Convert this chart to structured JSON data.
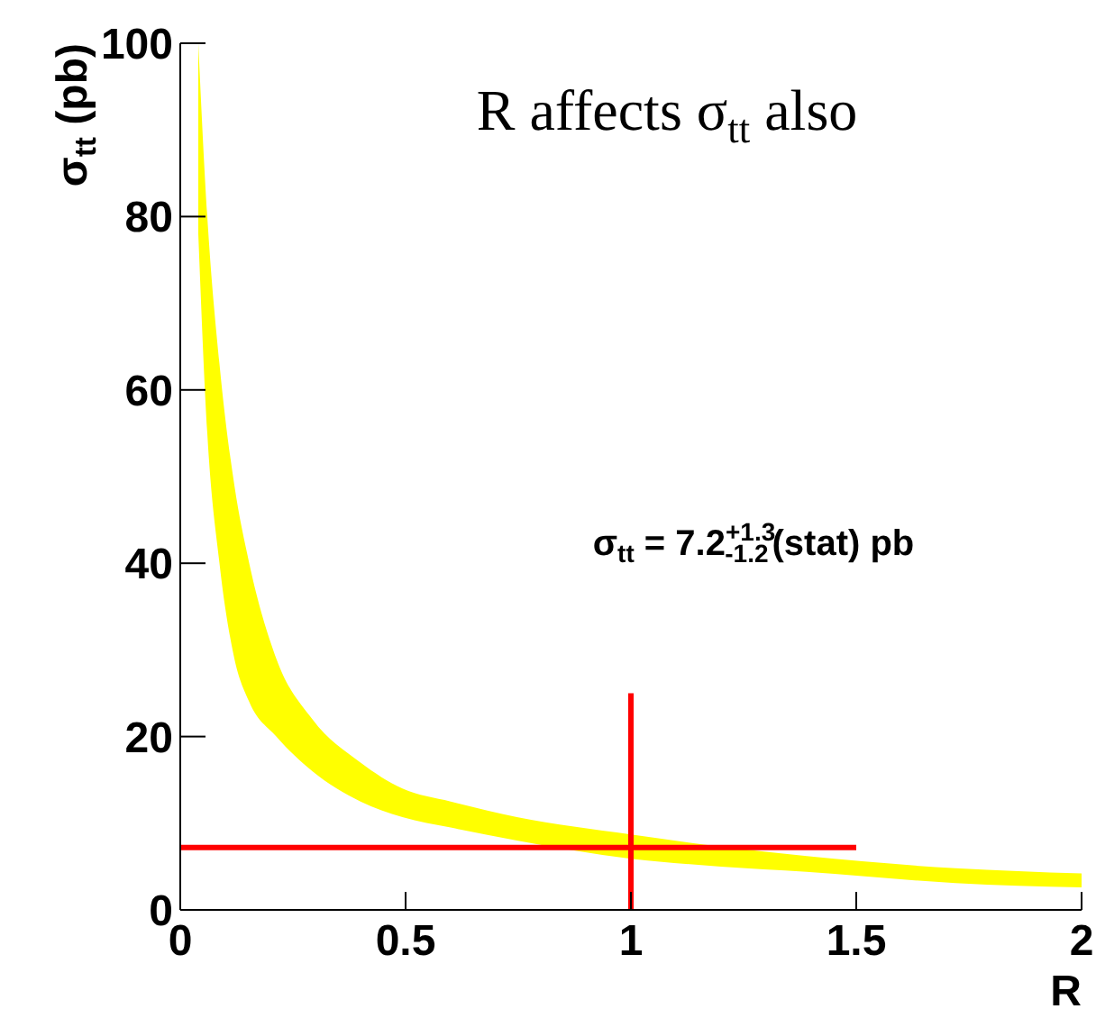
{
  "chart_data": {
    "type": "line",
    "title": "R affects σ$_{tt}$ also",
    "xlabel": "R",
    "ylabel": "σ$_{tt}$ (pb)",
    "annotations": [
      "σ$_{tt}$ = 7.2$^{+1.3}$$_{-1.2}$(stat) pb"
    ],
    "xlim": [
      0,
      2
    ],
    "xticks": [
      0,
      0.5,
      1,
      1.5,
      2
    ],
    "ylim": [
      0,
      100
    ],
    "yticks": [
      0,
      20,
      40,
      60,
      80,
      100
    ],
    "grid": false,
    "marker": "none",
    "line_style": "solid",
    "series": [
      {
        "type": "line",
        "color": "#ffff00",
        "x": [
          0.04,
          0.06,
          0.087,
          0.12,
          0.153,
          0.213,
          0.293,
          0.4,
          0.493,
          0.6,
          0.747,
          1,
          1.2,
          1.39,
          1.72,
          2
        ],
        "values": [
          null,
          null,
          null,
          null,
          null,
          null,
          null,
          null,
          null,
          null,
          null,
          null,
          null,
          null,
          null,
          null
        ],
        "lower": [
          78,
          55,
          40,
          29,
          24,
          20,
          16,
          12.5,
          10.7,
          9.5,
          8,
          5.9,
          5,
          4.4,
          3.1,
          2.6
        ],
        "upper": [
          100,
          80,
          63,
          49,
          40,
          29,
          22,
          17,
          14,
          12.5,
          10.7,
          8.7,
          7.3,
          6.2,
          4.8,
          4.2
        ]
      },
      {
        "color": "#ff0000",
        "x": [
          0,
          1.5
        ],
        "values": [
          7.2,
          7.2
        ]
      },
      {
        "color": "#ff0000",
        "x": [
          1,
          1
        ],
        "values": [
          0,
          25
        ]
      }
    ]
  }
}
